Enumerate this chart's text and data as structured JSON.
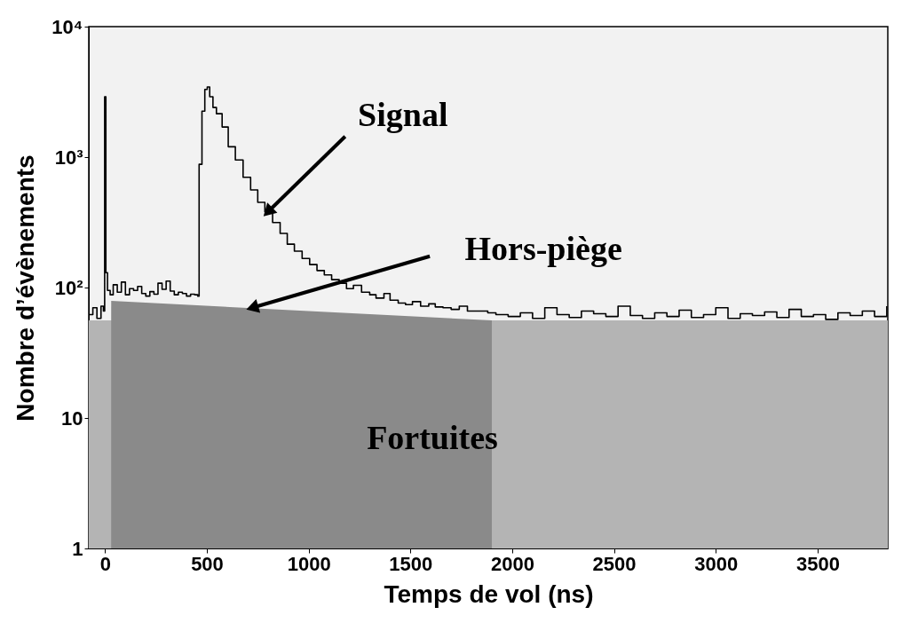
{
  "chart_data": {
    "type": "step",
    "xlabel": "Temps de vol (ns)",
    "ylabel": "Nombre d’évènements",
    "xlim": [
      -80,
      3845
    ],
    "xticks": [
      0,
      500,
      1000,
      1500,
      2000,
      2500,
      3000,
      3500
    ],
    "ylim": [
      1,
      10000
    ],
    "yticks": [
      1,
      10,
      {
        "value": 100,
        "label": "10²"
      },
      {
        "value": 1000,
        "label": "10³"
      },
      {
        "value": 10000,
        "label": "10⁴"
      }
    ],
    "log": "y",
    "grid": false,
    "series": [
      {
        "type": "area",
        "color": "#b4b4b4",
        "x": [
          -80,
          3845
        ],
        "values": [
          56,
          56
        ]
      },
      {
        "type": "area",
        "color": "#8a8a8a",
        "x": [
          30,
          1900
        ],
        "values": [
          79,
          56
        ]
      },
      {
        "color": "#000000",
        "x": [
          -80,
          -60,
          -40,
          -20,
          -8,
          -2,
          4,
          12,
          25,
          40,
          60,
          80,
          100,
          120,
          140,
          160,
          180,
          200,
          220,
          240,
          260,
          280,
          300,
          320,
          340,
          360,
          380,
          400,
          420,
          440,
          455,
          462,
          476,
          490,
          502,
          514,
          530,
          547,
          575,
          605,
          640,
          678,
          715,
          750,
          785,
          823,
          860,
          895,
          930,
          968,
          1005,
          1041,
          1077,
          1113,
          1150,
          1186,
          1220,
          1260,
          1300,
          1331,
          1370,
          1400,
          1440,
          1476,
          1510,
          1550,
          1590,
          1622,
          1660,
          1700,
          1740,
          1780,
          1840,
          1880,
          1920,
          1980,
          2040,
          2100,
          2160,
          2220,
          2280,
          2340,
          2400,
          2460,
          2520,
          2580,
          2640,
          2700,
          2760,
          2820,
          2880,
          2940,
          3000,
          3060,
          3120,
          3180,
          3240,
          3300,
          3360,
          3420,
          3480,
          3540,
          3600,
          3660,
          3720,
          3780,
          3840
        ],
        "values": [
          62,
          70,
          58,
          72,
          66,
          2900,
          130,
          95,
          88,
          105,
          92,
          110,
          88,
          98,
          95,
          102,
          90,
          86,
          93,
          89,
          108,
          97,
          112,
          94,
          88,
          92,
          90,
          86,
          89,
          88,
          86,
          880,
          2250,
          3300,
          3450,
          2900,
          2400,
          2150,
          1700,
          1200,
          950,
          700,
          560,
          450,
          380,
          315,
          260,
          215,
          190,
          167,
          150,
          135,
          125,
          115,
          108,
          98,
          104,
          92,
          88,
          83,
          90,
          80,
          76,
          74,
          78,
          72,
          75,
          71,
          70,
          68,
          72,
          66,
          66,
          64,
          62,
          60,
          64,
          58,
          70,
          62,
          59,
          66,
          63,
          60,
          72,
          61,
          58,
          64,
          60,
          67,
          59,
          62,
          70,
          58,
          63,
          61,
          65,
          59,
          68,
          60,
          62,
          57,
          64,
          61,
          66,
          60,
          72
        ]
      }
    ],
    "annotations": [
      {
        "text": "Signal",
        "x": 800,
        "y": 380
      },
      {
        "text": "Hors-piège",
        "x": 723,
        "y": 70
      },
      "Fortuites"
    ]
  }
}
